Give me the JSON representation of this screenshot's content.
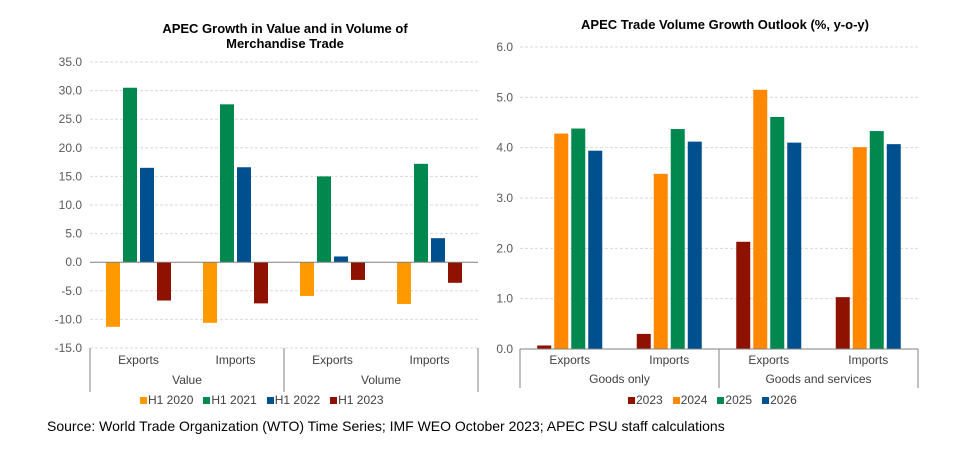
{
  "source": "Source: World Trade Organization (WTO) Time Series; IMF WEO October 2023; APEC PSU staff calculations",
  "chart_data": [
    {
      "type": "bar",
      "title": "APEC Growth in Value and in Volume of Merchandise Trade",
      "title_lines": [
        "APEC Growth in Value and in Volume of",
        "Merchandise Trade"
      ],
      "xlabel": "",
      "ylabel": "",
      "ylim": [
        -15,
        35
      ],
      "yticks": [
        35,
        30,
        25,
        20,
        15,
        10,
        5,
        0,
        -5,
        -10,
        -15
      ],
      "ytick_labels": [
        "35.0",
        "30.0",
        "25.0",
        "20.0",
        "15.0",
        "10.0",
        "5.0",
        "0.0",
        "-5.0",
        "-10.0",
        "-15.0"
      ],
      "grid": true,
      "categories": [
        "Exports",
        "Imports",
        "Exports",
        "Imports"
      ],
      "category_groups": [
        {
          "label": "Value",
          "categories": [
            "Exports",
            "Imports"
          ]
        },
        {
          "label": "Volume",
          "categories": [
            "Exports",
            "Imports"
          ]
        }
      ],
      "series": [
        {
          "name": "H1 2020",
          "color": "#FF9900",
          "values": [
            -11.3,
            -10.6,
            -5.9,
            -7.3
          ]
        },
        {
          "name": "H1 2021",
          "color": "#00884F",
          "values": [
            30.5,
            27.6,
            15.0,
            17.2
          ]
        },
        {
          "name": "H1 2022",
          "color": "#004F8F",
          "values": [
            16.5,
            16.6,
            1.0,
            4.2
          ]
        },
        {
          "name": "H1 2023",
          "color": "#8F1200",
          "values": [
            -6.7,
            -7.2,
            -3.1,
            -3.6
          ]
        }
      ],
      "legend_position": "bottom"
    },
    {
      "type": "bar",
      "title": "APEC Trade Volume Growth Outlook (%, y-o-y)",
      "title_lines": [
        "APEC Trade Volume Growth Outlook (%, y-o-y)"
      ],
      "xlabel": "",
      "ylabel": "",
      "ylim": [
        0,
        6
      ],
      "yticks": [
        6,
        5,
        4,
        3,
        2,
        1,
        0
      ],
      "ytick_labels": [
        "6.0",
        "5.0",
        "4.0",
        "3.0",
        "2.0",
        "1.0",
        "0.0"
      ],
      "grid": true,
      "categories": [
        "Exports",
        "Imports",
        "Exports",
        "Imports"
      ],
      "category_groups": [
        {
          "label": "Goods only",
          "categories": [
            "Exports",
            "Imports"
          ]
        },
        {
          "label": "Goods and services",
          "categories": [
            "Exports",
            "Imports"
          ]
        }
      ],
      "series": [
        {
          "name": "2023",
          "color": "#8F1200",
          "values": [
            0.07,
            0.3,
            2.13,
            1.03
          ]
        },
        {
          "name": "2024",
          "color": "#FF8800",
          "values": [
            4.28,
            3.48,
            5.15,
            4.01
          ]
        },
        {
          "name": "2025",
          "color": "#00884F",
          "values": [
            4.38,
            4.37,
            4.61,
            4.33
          ]
        },
        {
          "name": "2026",
          "color": "#004F8F",
          "values": [
            3.94,
            4.12,
            4.1,
            4.07
          ]
        }
      ],
      "legend_position": "bottom"
    }
  ]
}
